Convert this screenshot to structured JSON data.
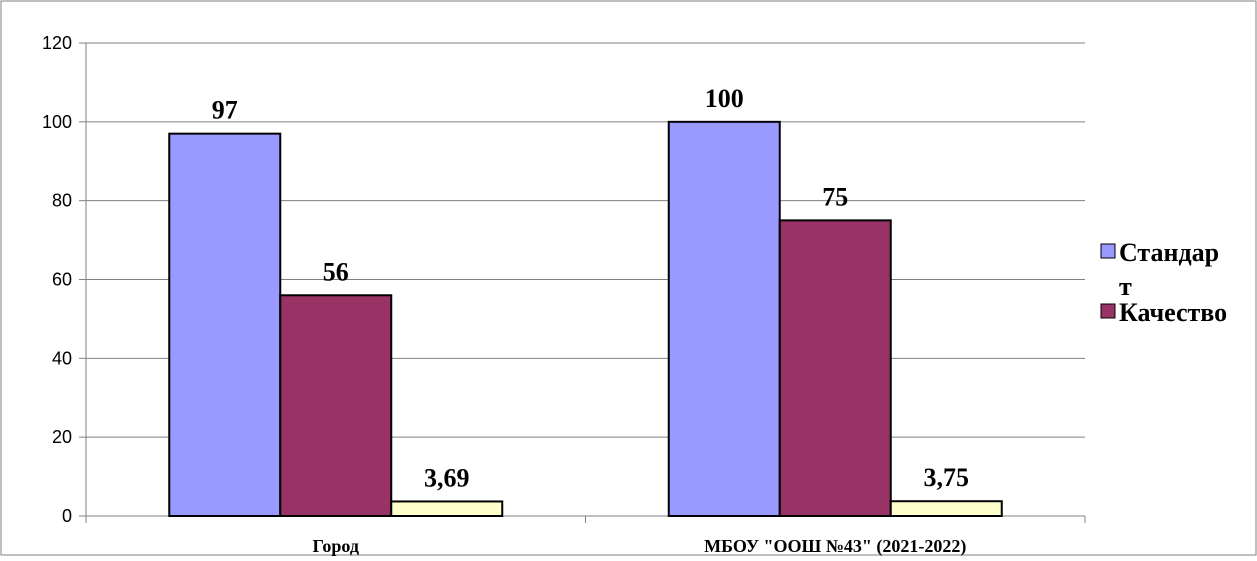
{
  "chart_data": {
    "type": "bar",
    "categories": [
      "Город",
      "МБОУ \"ООШ №43\" (2021-2022)"
    ],
    "series": [
      {
        "name": "Стандарт",
        "values": [
          97,
          100
        ],
        "labels": [
          "97",
          "100"
        ],
        "color": "#9999ff"
      },
      {
        "name": "Качество",
        "values": [
          56,
          75
        ],
        "labels": [
          "56",
          "75"
        ],
        "color": "#993366"
      },
      {
        "name": "",
        "values": [
          3.69,
          3.75
        ],
        "labels": [
          "3,69",
          "3,75"
        ],
        "color": "#ffffcc"
      }
    ],
    "yticks": [
      "0",
      "20",
      "40",
      "60",
      "80",
      "100",
      "120"
    ],
    "ylim": [
      0,
      120
    ],
    "grid": true,
    "legend_position": "right",
    "legend_entries": [
      {
        "label_line1": "Стандар",
        "label_line2": "т",
        "series": 0
      },
      {
        "label_line1": "Качество",
        "label_line2": "",
        "series": 1
      }
    ],
    "title": "",
    "xlabel": "",
    "ylabel": ""
  }
}
